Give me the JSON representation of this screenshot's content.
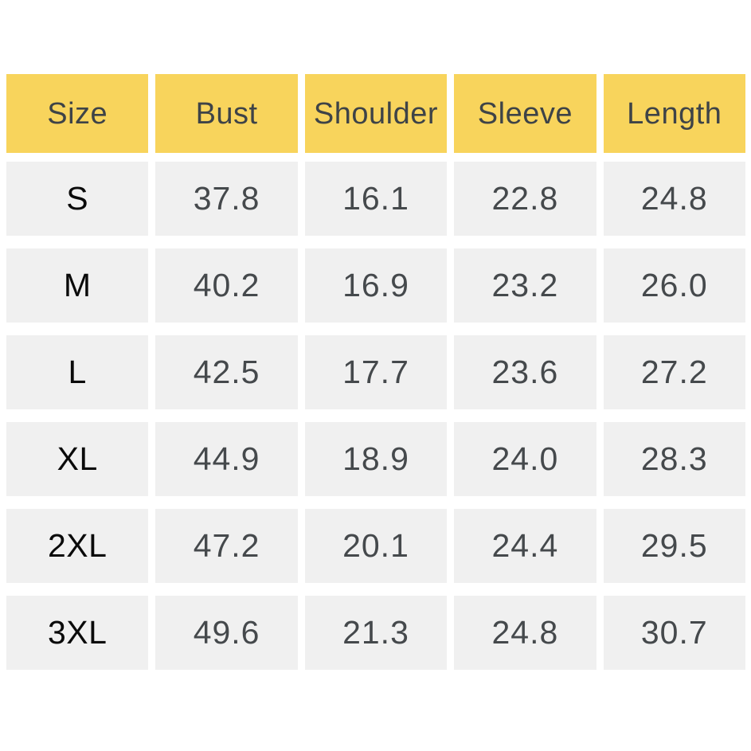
{
  "table": {
    "headers": [
      "Size",
      "Bust",
      "Shoulder",
      "Sleeve",
      "Length"
    ],
    "rows": [
      {
        "size": "S",
        "values": [
          "37.8",
          "16.1",
          "22.8",
          "24.8"
        ]
      },
      {
        "size": "M",
        "values": [
          "40.2",
          "16.9",
          "23.2",
          "26.0"
        ]
      },
      {
        "size": "L",
        "values": [
          "42.5",
          "17.7",
          "23.6",
          "27.2"
        ]
      },
      {
        "size": "XL",
        "values": [
          "44.9",
          "18.9",
          "24.0",
          "28.3"
        ]
      },
      {
        "size": "2XL",
        "values": [
          "47.2",
          "20.1",
          "24.4",
          "29.5"
        ]
      },
      {
        "size": "3XL",
        "values": [
          "49.6",
          "21.3",
          "24.8",
          "30.7"
        ]
      }
    ]
  },
  "chart_data": {
    "type": "table",
    "columns": [
      "Size",
      "Bust",
      "Shoulder",
      "Sleeve",
      "Length"
    ],
    "rows": [
      [
        "S",
        "37.8",
        "16.1",
        "22.8",
        "24.8"
      ],
      [
        "M",
        "40.2",
        "16.9",
        "23.2",
        "26.0"
      ],
      [
        "L",
        "42.5",
        "17.7",
        "23.6",
        "27.2"
      ],
      [
        "XL",
        "44.9",
        "18.9",
        "24.0",
        "28.3"
      ],
      [
        "2XL",
        "47.2",
        "20.1",
        "24.4",
        "29.5"
      ],
      [
        "3XL",
        "49.6",
        "21.3",
        "24.8",
        "30.7"
      ]
    ],
    "title": "",
    "layout_hints": {
      "header_fill": "#F8D45C",
      "row_fill": "#F0F0F0",
      "background": "#FFFFFF"
    }
  },
  "colors": {
    "header_background": "#F8D45C",
    "row_background": "#F0F0F0",
    "header_text": "#3E4347",
    "value_text": "#45494C",
    "size_text": "#0A0A0A",
    "page_background": "#FFFFFF"
  }
}
